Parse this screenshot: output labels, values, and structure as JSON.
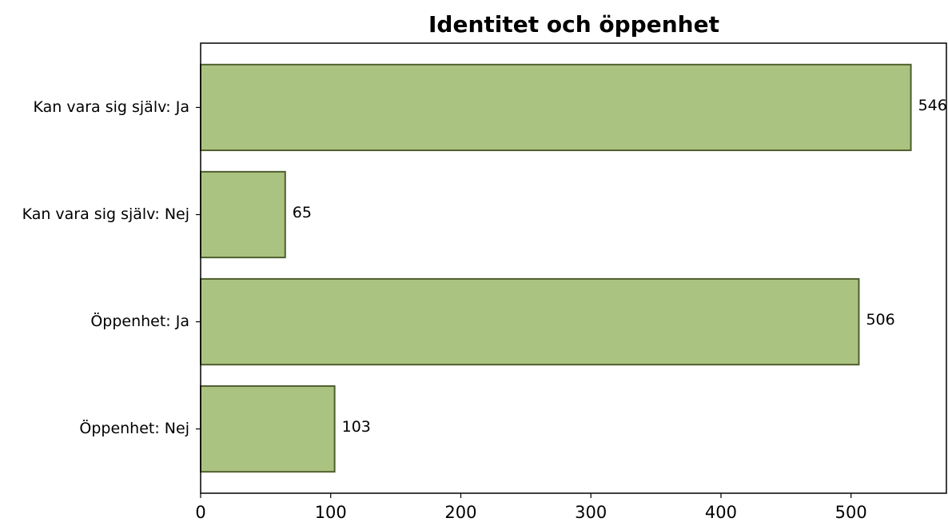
{
  "chart_data": {
    "type": "barh",
    "title": "Identitet och öppenhet",
    "categories": [
      "Kan vara sig själv: Ja",
      "Kan vara sig själv: Nej",
      "Öppenhet: Ja",
      "Öppenhet: Nej"
    ],
    "values": [
      546,
      65,
      506,
      103
    ],
    "color": "#abc380",
    "edge_color": "#4f5f2e",
    "xlim": [
      0,
      573.3
    ],
    "xticks": [
      0,
      100,
      200,
      300,
      400,
      500
    ],
    "grid": false
  }
}
